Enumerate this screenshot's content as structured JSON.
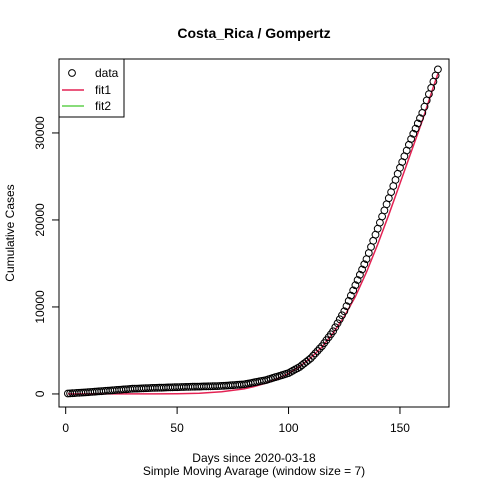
{
  "chart_data": {
    "type": "scatter",
    "title": "Costa_Rica / Gompertz",
    "xlabel": "Days since 2020-03-18",
    "xlabel2": "Simple Moving Avarage (window size = 7)",
    "ylabel": "Cumulative Cases",
    "xlim": [
      -3,
      172
    ],
    "ylim": [
      -1500,
      38500
    ],
    "x_ticks": [
      0,
      50,
      100,
      150
    ],
    "y_ticks": [
      0,
      10000,
      20000,
      30000
    ],
    "legend_position": "top-left",
    "series": [
      {
        "name": "data",
        "kind": "points",
        "color": "#000000",
        "x_start": 1,
        "x_end": 167,
        "anchors_x": [
          1,
          10,
          20,
          30,
          40,
          50,
          60,
          70,
          80,
          90,
          95,
          100,
          105,
          110,
          115,
          120,
          125,
          130,
          135,
          140,
          145,
          150,
          155,
          160,
          165,
          167
        ],
        "anchors_y": [
          50,
          200,
          400,
          600,
          700,
          780,
          850,
          920,
          1100,
          1600,
          2000,
          2400,
          3100,
          4100,
          5500,
          7200,
          9500,
          12500,
          15500,
          19000,
          22500,
          26000,
          29300,
          32300,
          35900,
          37300
        ]
      },
      {
        "name": "fit1",
        "kind": "line",
        "color": "#e32253",
        "x": [
          1,
          10,
          20,
          30,
          40,
          50,
          60,
          70,
          80,
          85,
          90,
          95,
          100,
          105,
          110,
          115,
          120,
          125,
          130,
          135,
          140,
          145,
          150,
          155,
          160,
          165,
          167
        ],
        "y": [
          0,
          0,
          0,
          2,
          8,
          30,
          90,
          250,
          580,
          880,
          1250,
          1750,
          2350,
          3150,
          4150,
          5400,
          7000,
          8900,
          11200,
          14000,
          17200,
          20600,
          24200,
          27800,
          31400,
          35300,
          36800
        ]
      },
      {
        "name": "fit2",
        "kind": "line",
        "color": "#61d04f",
        "x": [],
        "y": []
      }
    ]
  }
}
